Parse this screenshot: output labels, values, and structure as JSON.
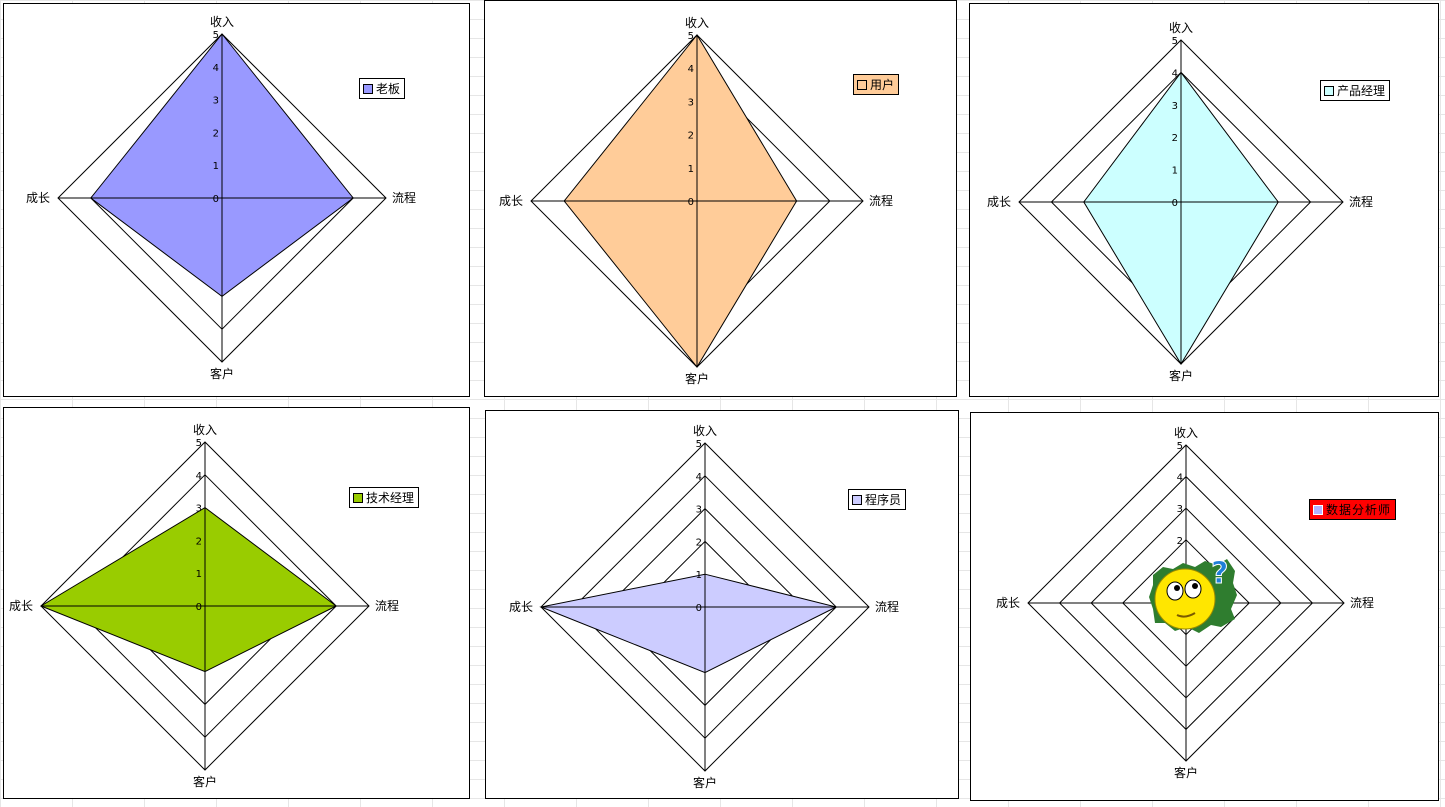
{
  "charts": [
    {
      "id": "boss",
      "legend": "老板",
      "color": "#9999ff",
      "legend_bg": "#ffffff"
    },
    {
      "id": "user",
      "legend": "用户",
      "color": "#ffcc99",
      "legend_bg": "#ffcc99"
    },
    {
      "id": "pm",
      "legend": "产品经理",
      "color": "#ccffff",
      "legend_bg": "#ffffff"
    },
    {
      "id": "tech",
      "legend": "技术经理",
      "color": "#99cc00",
      "legend_bg": "#ffffff"
    },
    {
      "id": "dev",
      "legend": "程序员",
      "color": "#ccccff",
      "legend_bg": "#ffffff"
    },
    {
      "id": "analyst",
      "legend": "数据分析师",
      "color": "#ff0000",
      "legend_bg": "#ff0000"
    }
  ],
  "axes": [
    "收入",
    "流程",
    "客户",
    "成长"
  ],
  "ticks": [
    "0",
    "1",
    "2",
    "3",
    "4",
    "5"
  ],
  "chart_data": [
    {
      "type": "radar",
      "categories": [
        "收入",
        "流程",
        "客户",
        "成长"
      ],
      "series": [
        {
          "name": "老板",
          "values": [
            5,
            4,
            3,
            4
          ]
        }
      ],
      "ylim": [
        0,
        5
      ]
    },
    {
      "type": "radar",
      "categories": [
        "收入",
        "流程",
        "客户",
        "成长"
      ],
      "series": [
        {
          "name": "用户",
          "values": [
            5,
            3,
            5,
            4
          ]
        }
      ],
      "ylim": [
        0,
        5
      ]
    },
    {
      "type": "radar",
      "categories": [
        "收入",
        "流程",
        "客户",
        "成长"
      ],
      "series": [
        {
          "name": "产品经理",
          "values": [
            4,
            3,
            5,
            3
          ]
        }
      ],
      "ylim": [
        0,
        5
      ]
    },
    {
      "type": "radar",
      "categories": [
        "收入",
        "流程",
        "客户",
        "成长"
      ],
      "series": [
        {
          "name": "技术经理",
          "values": [
            3,
            4,
            2,
            5
          ]
        }
      ],
      "ylim": [
        0,
        5
      ]
    },
    {
      "type": "radar",
      "categories": [
        "收入",
        "流程",
        "客户",
        "成长"
      ],
      "series": [
        {
          "name": "程序员",
          "values": [
            1,
            4,
            2,
            5
          ]
        }
      ],
      "ylim": [
        0,
        5
      ]
    },
    {
      "type": "radar",
      "categories": [
        "收入",
        "流程",
        "客户",
        "成长"
      ],
      "series": [
        {
          "name": "数据分析师",
          "values": [
            0,
            0,
            0,
            0
          ]
        }
      ],
      "ylim": [
        0,
        5
      ]
    }
  ],
  "emoji": {
    "icon": "confused-smiley-icon",
    "glyph": "?"
  }
}
